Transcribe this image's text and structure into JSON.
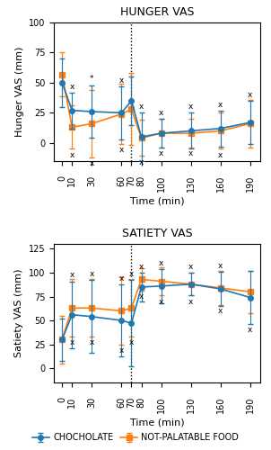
{
  "chart_data": [
    {
      "type": "line",
      "title": "HUNGER VAS",
      "x_label": "Time (min)",
      "y_label": "Hunger VAS (mm)",
      "x": [
        0,
        10,
        30,
        60,
        70,
        80,
        100,
        130,
        160,
        190
      ],
      "xlim": [
        -8,
        200
      ],
      "xticks": [
        0,
        10,
        30,
        60,
        70,
        80,
        100,
        130,
        160,
        190
      ],
      "ylim": [
        -15,
        100
      ],
      "yticks": [
        0,
        25,
        50,
        75,
        100
      ],
      "series": [
        {
          "name": "CHOCHOLATE",
          "marker": "circle",
          "line_style": "solid",
          "values": [
            50,
            27,
            26,
            25,
            35,
            5,
            8,
            10,
            12,
            17
          ],
          "errors": [
            20,
            15,
            22,
            22,
            20,
            20,
            12,
            15,
            15,
            18
          ]
        },
        {
          "name": "NOT-PALATABLE FOOD",
          "marker": "square",
          "line_style": "solid",
          "values": [
            57,
            13,
            16,
            24,
            28,
            4,
            8,
            8,
            10,
            16
          ],
          "errors": [
            18,
            18,
            28,
            25,
            30,
            15,
            12,
            12,
            15,
            20
          ]
        }
      ],
      "reference_lines": [
        {
          "x": 70,
          "line_style": "dotted"
        }
      ],
      "annotations": [
        {
          "text": "x",
          "x": 10,
          "series": "CHOCHOLATE",
          "side": "above"
        },
        {
          "text": "x",
          "x": 60,
          "series": "CHOCHOLATE",
          "side": "above"
        },
        {
          "text": "x",
          "x": 80,
          "series": "CHOCHOLATE",
          "side": "above"
        },
        {
          "text": "x",
          "x": 100,
          "series": "CHOCHOLATE",
          "side": "above"
        },
        {
          "text": "x",
          "x": 130,
          "series": "CHOCHOLATE",
          "side": "above"
        },
        {
          "text": "x",
          "x": 160,
          "series": "CHOCHOLATE",
          "side": "above"
        },
        {
          "text": "x",
          "x": 190,
          "series": "CHOCHOLATE",
          "side": "above"
        },
        {
          "text": "x",
          "x": 10,
          "series": "NOT-PALATABLE FOOD",
          "side": "below"
        },
        {
          "text": "x",
          "x": 30,
          "series": "NOT-PALATABLE FOOD",
          "side": "below"
        },
        {
          "text": "x",
          "x": 60,
          "series": "NOT-PALATABLE FOOD",
          "side": "below"
        },
        {
          "text": "x",
          "x": 80,
          "series": "NOT-PALATABLE FOOD",
          "side": "below"
        },
        {
          "text": "x",
          "x": 100,
          "series": "NOT-PALATABLE FOOD",
          "side": "below"
        },
        {
          "text": "x",
          "x": 130,
          "series": "NOT-PALATABLE FOOD",
          "side": "below"
        },
        {
          "text": "x",
          "x": 160,
          "series": "NOT-PALATABLE FOOD",
          "side": "below"
        },
        {
          "text": "*",
          "x": 30,
          "series": "CHOCHOLATE",
          "side": "above"
        }
      ]
    },
    {
      "type": "line",
      "title": "SATIETY VAS",
      "x_label": "Time (min)",
      "y_label": "Satiety VAS (mm)",
      "x": [
        0,
        10,
        30,
        60,
        70,
        80,
        100,
        130,
        160,
        190
      ],
      "xlim": [
        -8,
        200
      ],
      "xticks": [
        0,
        10,
        30,
        60,
        70,
        80,
        100,
        130,
        160,
        190
      ],
      "ylim": [
        -15,
        130
      ],
      "yticks": [
        0,
        25,
        50,
        75,
        100,
        125
      ],
      "legend": "bottom",
      "series": [
        {
          "name": "CHOCHOLATE",
          "marker": "circle",
          "line_style": "solid",
          "values": [
            30,
            56,
            54,
            50,
            47,
            85,
            86,
            88,
            83,
            74
          ],
          "errors": [
            22,
            35,
            38,
            38,
            45,
            15,
            18,
            12,
            18,
            28
          ]
        },
        {
          "name": "NOT-PALATABLE FOOD",
          "marker": "square",
          "line_style": "solid",
          "values": [
            30,
            63,
            63,
            60,
            63,
            93,
            91,
            88,
            84,
            80
          ],
          "errors": [
            25,
            30,
            30,
            35,
            30,
            12,
            15,
            12,
            18,
            22
          ]
        }
      ],
      "reference_lines": [
        {
          "x": 70,
          "line_style": "dotted"
        }
      ],
      "annotations": [
        {
          "text": "x",
          "x": 10,
          "series": "CHOCHOLATE",
          "side": "above"
        },
        {
          "text": "x",
          "x": 30,
          "series": "CHOCHOLATE",
          "side": "above"
        },
        {
          "text": "x",
          "x": 60,
          "series": "CHOCHOLATE",
          "side": "above"
        },
        {
          "text": "x",
          "x": 70,
          "series": "CHOCHOLATE",
          "side": "above"
        },
        {
          "text": "x",
          "x": 80,
          "series": "CHOCHOLATE",
          "side": "above"
        },
        {
          "text": "x",
          "x": 100,
          "series": "CHOCHOLATE",
          "side": "above"
        },
        {
          "text": "x",
          "x": 130,
          "series": "CHOCHOLATE",
          "side": "above"
        },
        {
          "text": "x",
          "x": 160,
          "series": "CHOCHOLATE",
          "side": "above"
        },
        {
          "text": "x",
          "x": 190,
          "series": "CHOCHOLATE",
          "side": "below"
        },
        {
          "text": "x",
          "x": 10,
          "series": "NOT-PALATABLE FOOD",
          "side": "below"
        },
        {
          "text": "x",
          "x": 30,
          "series": "NOT-PALATABLE FOOD",
          "side": "below"
        },
        {
          "text": "x",
          "x": 60,
          "series": "NOT-PALATABLE FOOD",
          "side": "below"
        },
        {
          "text": "x",
          "x": 70,
          "series": "NOT-PALATABLE FOOD",
          "side": "below"
        },
        {
          "text": "x",
          "x": 80,
          "series": "NOT-PALATABLE FOOD",
          "side": "below"
        },
        {
          "text": "x",
          "x": 100,
          "series": "NOT-PALATABLE FOOD",
          "side": "below"
        },
        {
          "text": "x",
          "x": 130,
          "series": "NOT-PALATABLE FOOD",
          "side": "below"
        },
        {
          "text": "x",
          "x": 160,
          "series": "NOT-PALATABLE FOOD",
          "side": "below"
        }
      ]
    }
  ]
}
